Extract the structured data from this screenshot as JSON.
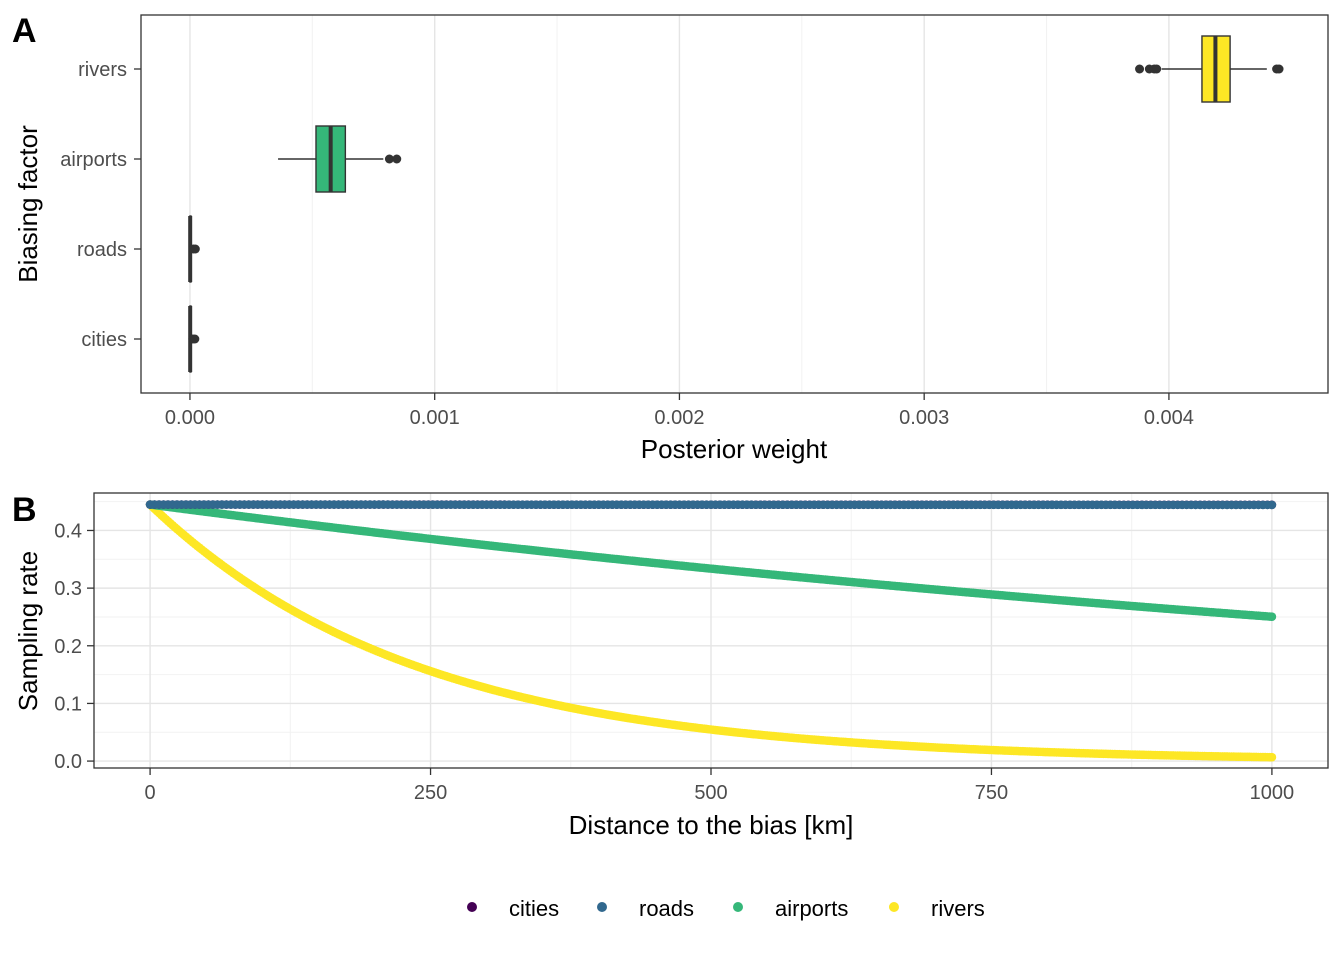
{
  "figure": {
    "legend_position": "bottom",
    "legend": [
      {
        "label": "cities",
        "color": "#440154"
      },
      {
        "label": "roads",
        "color": "#31688E"
      },
      {
        "label": "airports",
        "color": "#35B779"
      },
      {
        "label": "rivers",
        "color": "#FDE725"
      }
    ]
  },
  "chart_data": [
    {
      "panel": "A",
      "type": "boxplot",
      "orientation": "horizontal",
      "xlabel": "Posterior weight",
      "ylabel": "Biasing factor",
      "xlim": [
        -0.0002,
        0.00465
      ],
      "x_ticks": [
        0.0,
        0.001,
        0.002,
        0.003,
        0.004
      ],
      "x_tick_labels": [
        "0.000",
        "0.001",
        "0.002",
        "0.003",
        "0.004"
      ],
      "categories": [
        "cities",
        "roads",
        "airports",
        "rivers"
      ],
      "grid": "vertical major",
      "boxes": [
        {
          "category": "cities",
          "color": "#440154",
          "whisker_low": 0.0,
          "q1": 0.0,
          "median": 1e-06,
          "q3": 2e-06,
          "whisker_high": 5e-06,
          "outliers": [
            1.2e-05,
            2e-05
          ]
        },
        {
          "category": "roads",
          "color": "#31688E",
          "whisker_low": 0.0,
          "q1": 0.0,
          "median": 1e-06,
          "q3": 2e-06,
          "whisker_high": 6e-06,
          "outliers": [
            1.4e-05,
            2.2e-05
          ]
        },
        {
          "category": "airports",
          "color": "#35B779",
          "whisker_low": 0.00036,
          "q1": 0.000515,
          "median": 0.000575,
          "q3": 0.000635,
          "whisker_high": 0.00079,
          "outliers": [
            0.000815,
            0.000845
          ]
        },
        {
          "category": "rivers",
          "color": "#FDE725",
          "whisker_low": 0.00397,
          "q1": 0.004135,
          "median": 0.00419,
          "q3": 0.00425,
          "whisker_high": 0.0044,
          "outliers": [
            0.00388,
            0.00392,
            0.00394,
            0.00395,
            0.00444,
            0.00445
          ]
        }
      ]
    },
    {
      "panel": "B",
      "type": "scatter",
      "xlabel": "Distance to the bias [km]",
      "ylabel": "Sampling rate",
      "xlim": [
        -50,
        1050
      ],
      "ylim": [
        -0.012,
        0.465
      ],
      "x_ticks": [
        0,
        250,
        500,
        750,
        1000
      ],
      "x_tick_labels": [
        "0",
        "250",
        "500",
        "750",
        "1000"
      ],
      "y_ticks": [
        0.0,
        0.1,
        0.2,
        0.3,
        0.4
      ],
      "y_tick_labels": [
        "0.0",
        "0.1",
        "0.2",
        "0.3",
        "0.4"
      ],
      "grid": "major and minor",
      "x_range": [
        0,
        1000
      ],
      "series": [
        {
          "name": "cities",
          "color": "#440154",
          "y_start": 0.445,
          "decay_per_km": 1e-06
        },
        {
          "name": "roads",
          "color": "#31688E",
          "y_start": 0.445,
          "decay_per_km": 1.5e-06
        },
        {
          "name": "airports",
          "color": "#35B779",
          "y_start": 0.445,
          "decay_per_km": 0.000575
        },
        {
          "name": "rivers",
          "color": "#FDE725",
          "y_start": 0.445,
          "decay_per_km": 0.00419
        }
      ]
    }
  ]
}
